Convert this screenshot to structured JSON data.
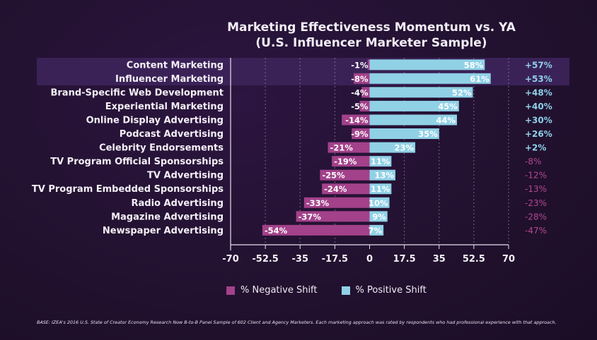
{
  "title": {
    "line1": "Marketing Effectiveness Momentum vs. YA",
    "line2": "(U.S. Influencer Marketer Sample)"
  },
  "footnote": "BASE: IZEA's 2016 U.S. State of Creator Economy Research Now B-to-B Panel Sample of 602 Client and Agency Marketers. Each marketing approach was rated by respondents who had professional experience with that approach.",
  "colors": {
    "negative": "#a3418a",
    "positive": "#90d1e6",
    "momentum_positive": "#8fd0ea",
    "momentum_negative": "#b2488f",
    "highlight": "#3a2257"
  },
  "chart_data": {
    "type": "bar",
    "orientation": "horizontal",
    "stacked": "diverging",
    "categories": [
      "Content Marketing",
      "Influencer Marketing",
      "Brand-Specific Web Development",
      "Experiential Marketing",
      "Online Display Advertising",
      "Podcast Advertising",
      "Celebrity Endorsements",
      "TV Program Official Sponsorships",
      "TV Advertising",
      "TV Program Embedded Sponsorships",
      "Radio Advertising",
      "Magazine Advertising",
      "Newspaper Advertising"
    ],
    "series": [
      {
        "name": "% Negative Shift",
        "values": [
          -1,
          -8,
          -4,
          -5,
          -14,
          -9,
          -21,
          -19,
          -25,
          -24,
          -33,
          -37,
          -54
        ],
        "labels": [
          "-1%",
          "-8%",
          "-4%",
          "-5%",
          "-14%",
          "-9%",
          "-21%",
          "-19%",
          "-25%",
          "-24%",
          "-33%",
          "-37%",
          "-54%"
        ]
      },
      {
        "name": "% Positive Shift",
        "values": [
          58,
          61,
          52,
          45,
          44,
          35,
          23,
          11,
          13,
          11,
          10,
          9,
          7
        ],
        "labels": [
          "58%",
          "61%",
          "52%",
          "45%",
          "44%",
          "35%",
          "23%",
          "11%",
          "13%",
          "11%",
          "10%",
          "9%",
          "7%"
        ]
      }
    ],
    "momentum": [
      "+57%",
      "+53%",
      "+48%",
      "+40%",
      "+30%",
      "+26%",
      "+2%",
      "-8%",
      "-12%",
      "-13%",
      "-23%",
      "-28%",
      "-47%"
    ],
    "highlighted_categories": [
      "Content Marketing",
      "Influencer Marketing"
    ],
    "xlim": [
      -70,
      70
    ],
    "xticks": [
      "-70",
      "-52.5",
      "-35",
      "-17.5",
      "0",
      "17.5",
      "35",
      "52.5",
      "70"
    ],
    "grid": "vertical dotted",
    "legend_position": "bottom"
  }
}
